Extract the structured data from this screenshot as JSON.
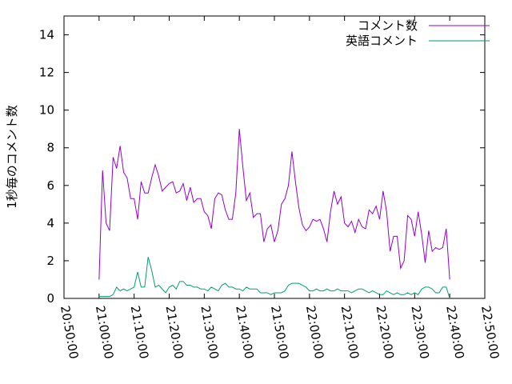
{
  "chart_data": {
    "type": "line",
    "ylabel": "1秒毎のコメント数",
    "xlim": [
      "20:50:00",
      "22:50:00"
    ],
    "xticks": [
      "20:50:00",
      "21:00:00",
      "21:10:00",
      "21:20:00",
      "21:30:00",
      "21:40:00",
      "21:50:00",
      "22:00:00",
      "22:10:00",
      "22:20:00",
      "22:30:00",
      "22:40:00",
      "22:50:00"
    ],
    "ylim": [
      0,
      15
    ],
    "yticks": [
      0,
      2,
      4,
      6,
      8,
      10,
      12,
      14
    ],
    "legend": "top-right",
    "x": [
      "21:00:00",
      "21:01:00",
      "21:02:00",
      "21:03:00",
      "21:04:00",
      "21:05:00",
      "21:06:00",
      "21:07:00",
      "21:08:00",
      "21:09:00",
      "21:10:00",
      "21:11:00",
      "21:12:00",
      "21:13:00",
      "21:14:00",
      "21:15:00",
      "21:16:00",
      "21:17:00",
      "21:18:00",
      "21:19:00",
      "21:20:00",
      "21:21:00",
      "21:22:00",
      "21:23:00",
      "21:24:00",
      "21:25:00",
      "21:26:00",
      "21:27:00",
      "21:28:00",
      "21:29:00",
      "21:30:00",
      "21:31:00",
      "21:32:00",
      "21:33:00",
      "21:34:00",
      "21:35:00",
      "21:36:00",
      "21:37:00",
      "21:38:00",
      "21:39:00",
      "21:40:00",
      "21:41:00",
      "21:42:00",
      "21:43:00",
      "21:44:00",
      "21:45:00",
      "21:46:00",
      "21:47:00",
      "21:48:00",
      "21:49:00",
      "21:50:00",
      "21:51:00",
      "21:52:00",
      "21:53:00",
      "21:54:00",
      "21:55:00",
      "21:56:00",
      "21:57:00",
      "21:58:00",
      "21:59:00",
      "22:00:00",
      "22:01:00",
      "22:02:00",
      "22:03:00",
      "22:04:00",
      "22:05:00",
      "22:06:00",
      "22:07:00",
      "22:08:00",
      "22:09:00",
      "22:10:00",
      "22:11:00",
      "22:12:00",
      "22:13:00",
      "22:14:00",
      "22:15:00",
      "22:16:00",
      "22:17:00",
      "22:18:00",
      "22:19:00",
      "22:20:00",
      "22:21:00",
      "22:22:00",
      "22:23:00",
      "22:24:00",
      "22:25:00",
      "22:26:00",
      "22:27:00",
      "22:28:00",
      "22:29:00",
      "22:30:00",
      "22:31:00",
      "22:32:00",
      "22:33:00",
      "22:34:00",
      "22:35:00",
      "22:36:00",
      "22:37:00",
      "22:38:00",
      "22:39:00",
      "22:40:00"
    ],
    "series": [
      {
        "name": "コメント数",
        "color": "#9400d3",
        "values": [
          1.0,
          6.8,
          4.0,
          3.6,
          7.5,
          6.9,
          8.1,
          6.7,
          6.4,
          5.3,
          5.3,
          4.2,
          6.2,
          5.6,
          5.6,
          6.4,
          7.1,
          6.5,
          5.7,
          5.9,
          6.1,
          6.2,
          5.6,
          5.7,
          6.1,
          5.2,
          5.9,
          5.1,
          5.3,
          5.3,
          4.6,
          4.4,
          3.7,
          5.3,
          5.6,
          5.5,
          4.7,
          4.2,
          4.2,
          5.6,
          9.0,
          7.0,
          5.2,
          5.6,
          4.3,
          4.5,
          4.5,
          3.0,
          3.7,
          3.9,
          3.0,
          3.6,
          5.0,
          5.3,
          6.0,
          7.8,
          6.2,
          4.8,
          3.9,
          3.6,
          3.8,
          4.2,
          4.1,
          4.2,
          3.7,
          3.0,
          4.6,
          5.7,
          5.0,
          5.4,
          4.0,
          3.8,
          4.1,
          3.5,
          4.2,
          3.8,
          3.7,
          4.7,
          4.5,
          4.9,
          4.2,
          5.7,
          4.6,
          2.5,
          3.3,
          3.3,
          1.6,
          2.0,
          4.4,
          4.2,
          3.3,
          4.6,
          3.4,
          1.9,
          3.6,
          2.5,
          2.7,
          2.6,
          2.7,
          3.7,
          1.0
        ]
      },
      {
        "name": "英語コメント",
        "color": "#009e73",
        "values": [
          0.1,
          0.1,
          0.1,
          0.1,
          0.2,
          0.6,
          0.4,
          0.5,
          0.4,
          0.5,
          0.6,
          1.4,
          0.6,
          0.6,
          2.2,
          1.5,
          0.6,
          0.7,
          0.5,
          0.3,
          0.6,
          0.7,
          0.5,
          0.9,
          0.9,
          0.7,
          0.7,
          0.6,
          0.6,
          0.5,
          0.5,
          0.4,
          0.6,
          0.5,
          0.4,
          0.7,
          0.8,
          0.6,
          0.6,
          0.5,
          0.5,
          0.4,
          0.6,
          0.5,
          0.5,
          0.5,
          0.3,
          0.3,
          0.3,
          0.2,
          0.3,
          0.3,
          0.3,
          0.4,
          0.7,
          0.8,
          0.8,
          0.8,
          0.7,
          0.6,
          0.4,
          0.4,
          0.5,
          0.4,
          0.4,
          0.5,
          0.4,
          0.4,
          0.5,
          0.4,
          0.4,
          0.4,
          0.3,
          0.4,
          0.5,
          0.5,
          0.4,
          0.3,
          0.4,
          0.3,
          0.2,
          0.2,
          0.4,
          0.3,
          0.2,
          0.3,
          0.2,
          0.2,
          0.3,
          0.2,
          0.3,
          0.2,
          0.5,
          0.6,
          0.6,
          0.5,
          0.3,
          0.3,
          0.6,
          0.6,
          0.0
        ]
      }
    ]
  }
}
